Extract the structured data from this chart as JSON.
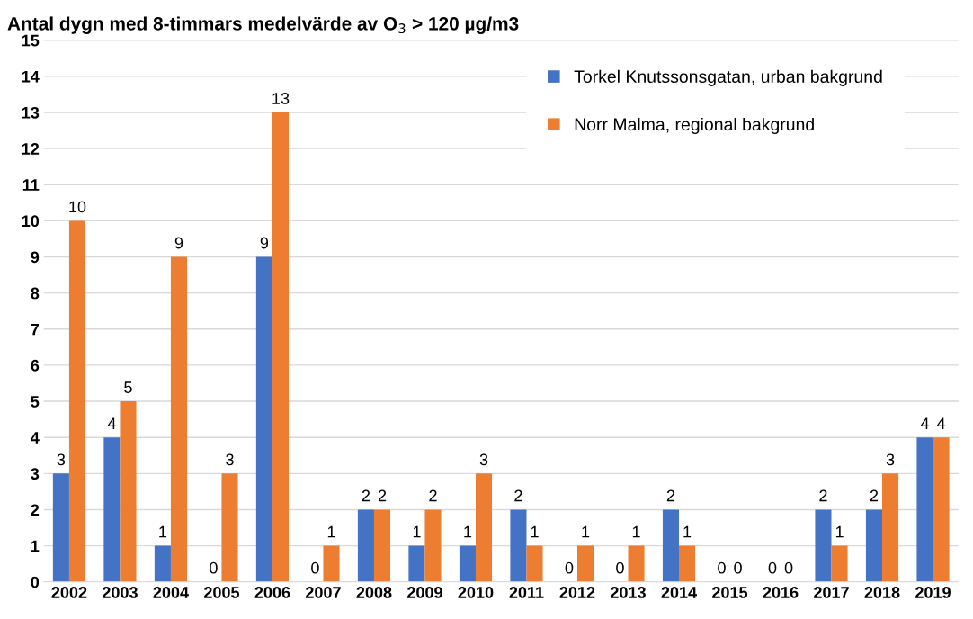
{
  "chart_data": {
    "type": "bar",
    "title": "Antal dygn med 8-timmars medelvärde av O$_{3}$ > 120 µg/m3",
    "categories": [
      "2002",
      "2003",
      "2004",
      "2005",
      "2006",
      "2007",
      "2008",
      "2009",
      "2010",
      "2011",
      "2012",
      "2013",
      "2014",
      "2015",
      "2016",
      "2017",
      "2018",
      "2019"
    ],
    "series": [
      {
        "name": "Torkel Knutssonsgatan, urban bakgrund",
        "color": "#4472c4",
        "values": [
          3,
          4,
          1,
          0,
          9,
          0,
          2,
          1,
          1,
          2,
          0,
          0,
          2,
          0,
          0,
          2,
          2,
          4
        ]
      },
      {
        "name": "Norr Malma, regional bakgrund",
        "color": "#ed7d31",
        "values": [
          10,
          5,
          9,
          3,
          13,
          1,
          2,
          2,
          3,
          1,
          1,
          1,
          1,
          0,
          0,
          1,
          3,
          4
        ]
      }
    ],
    "ylim": [
      0,
      15
    ],
    "yticks": [
      0,
      1,
      2,
      3,
      4,
      5,
      6,
      7,
      8,
      9,
      10,
      11,
      12,
      13,
      14,
      15
    ],
    "grid": "y",
    "legend": "top right",
    "data_labels": true
  }
}
